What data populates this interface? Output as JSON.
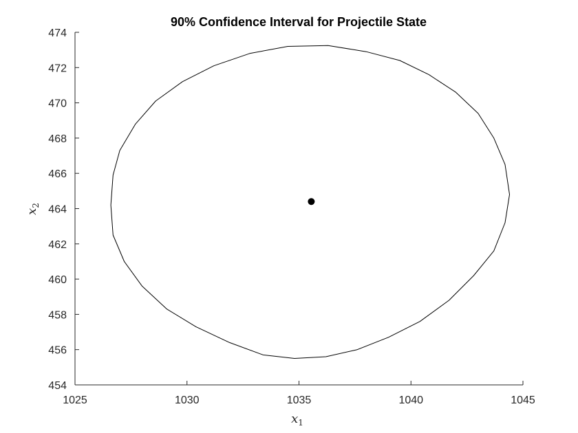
{
  "chart_data": {
    "type": "scatter",
    "title": "90% Confidence Interval for Projectile State",
    "xlabel": {
      "base": "x",
      "sub": "1"
    },
    "ylabel": {
      "base": "x",
      "sub": "2"
    },
    "xlim": [
      1025,
      1045
    ],
    "ylim": [
      454,
      474
    ],
    "xticks": [
      1025,
      1030,
      1035,
      1040,
      1045
    ],
    "yticks": [
      454,
      456,
      458,
      460,
      462,
      464,
      466,
      468,
      470,
      472,
      474
    ],
    "grid": false,
    "series": [
      {
        "kind": "line",
        "closed": true,
        "color": "#000000",
        "points": [
          [
            1044.4,
            464.8
          ],
          [
            1044.2,
            466.5
          ],
          [
            1043.7,
            468.0
          ],
          [
            1043.0,
            469.4
          ],
          [
            1042.0,
            470.6
          ],
          [
            1040.8,
            471.6
          ],
          [
            1039.5,
            472.4
          ],
          [
            1038.0,
            472.9
          ],
          [
            1036.3,
            473.25
          ],
          [
            1034.5,
            473.2
          ],
          [
            1032.8,
            472.8
          ],
          [
            1031.2,
            472.1
          ],
          [
            1029.8,
            471.2
          ],
          [
            1028.6,
            470.1
          ],
          [
            1027.7,
            468.8
          ],
          [
            1027.0,
            467.3
          ],
          [
            1026.7,
            465.9
          ],
          [
            1026.6,
            464.2
          ],
          [
            1026.7,
            462.5
          ],
          [
            1027.2,
            461.0
          ],
          [
            1028.0,
            459.6
          ],
          [
            1029.1,
            458.3
          ],
          [
            1030.4,
            457.3
          ],
          [
            1031.9,
            456.4
          ],
          [
            1033.4,
            455.7
          ],
          [
            1034.8,
            455.5
          ],
          [
            1036.2,
            455.6
          ],
          [
            1037.6,
            456.0
          ],
          [
            1039.0,
            456.7
          ],
          [
            1040.4,
            457.6
          ],
          [
            1041.7,
            458.8
          ],
          [
            1042.8,
            460.2
          ],
          [
            1043.7,
            461.6
          ],
          [
            1044.2,
            463.2
          ]
        ]
      },
      {
        "kind": "point",
        "color": "#000000",
        "points": [
          [
            1035.55,
            464.4
          ]
        ]
      }
    ]
  }
}
